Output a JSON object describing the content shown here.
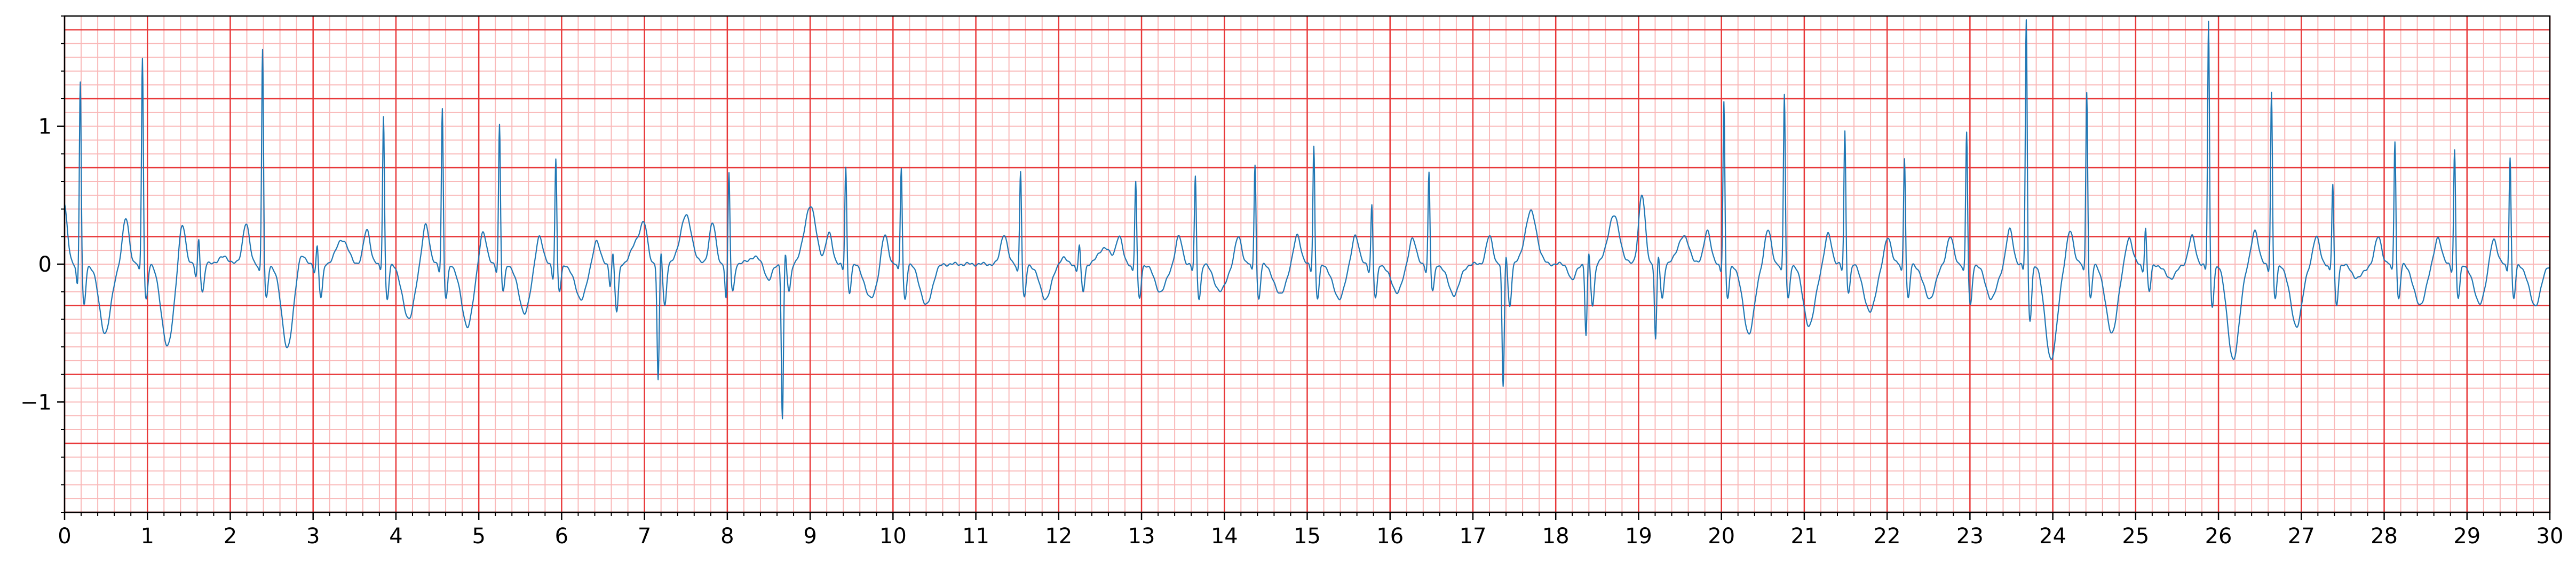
{
  "chart_data": {
    "type": "line",
    "title": "",
    "xlabel": "",
    "ylabel": "",
    "xlim": [
      0,
      30
    ],
    "ylim": [
      -1.8,
      1.8
    ],
    "x_ticks": [
      0,
      1,
      2,
      3,
      4,
      5,
      6,
      7,
      8,
      9,
      10,
      11,
      12,
      13,
      14,
      15,
      16,
      17,
      18,
      19,
      20,
      21,
      22,
      23,
      24,
      25,
      26,
      27,
      28,
      29,
      30
    ],
    "x_tick_labels": [
      "0",
      "1",
      "2",
      "3",
      "4",
      "5",
      "6",
      "7",
      "8",
      "9",
      "10",
      "11",
      "12",
      "13",
      "14",
      "15",
      "16",
      "17",
      "18",
      "19",
      "20",
      "21",
      "22",
      "23",
      "24",
      "25",
      "26",
      "27",
      "28",
      "29",
      "30"
    ],
    "y_ticks": [
      -1,
      0,
      1
    ],
    "y_tick_labels": [
      "−1",
      "0",
      "1"
    ],
    "grid": {
      "major": true,
      "major_x_step": 1,
      "major_y_step": 0.5,
      "major_color": "#e8393a",
      "minor": true,
      "minor_x_step": 0.2,
      "minor_y_step": 0.1,
      "minor_color": "#f9b9b9"
    },
    "line_color": "#1f77b4",
    "beats": [
      {
        "t": 0.19,
        "amp": 1.35,
        "q": 0.15,
        "s": 0.3,
        "tw": -0.5,
        "tt": 0.45
      },
      {
        "t": 0.94,
        "amp": 1.52,
        "q": 0.05,
        "s": 0.25,
        "tw": -0.6,
        "tt": 0.33
      },
      {
        "t": 1.62,
        "amp": 0.2,
        "q": 0.1,
        "s": 0.2,
        "tw": 0.05,
        "tt": 0.3
      },
      {
        "t": 2.39,
        "amp": 1.58,
        "q": 0.05,
        "s": 0.25,
        "tw": -0.6,
        "tt": 0.3
      },
      {
        "t": 3.05,
        "amp": 0.15,
        "q": 0.05,
        "s": 0.25,
        "tw": 0.18,
        "tt": 0.1
      },
      {
        "t": 3.85,
        "amp": 1.1,
        "q": 0.05,
        "s": 0.25,
        "tw": -0.4,
        "tt": 0.25
      },
      {
        "t": 4.56,
        "amp": 1.15,
        "q": 0.05,
        "s": 0.25,
        "tw": -0.45,
        "tt": 0.3
      },
      {
        "t": 5.25,
        "amp": 1.03,
        "q": 0.05,
        "s": 0.2,
        "tw": -0.35,
        "tt": 0.25
      },
      {
        "t": 5.93,
        "amp": 0.78,
        "q": 0.1,
        "s": 0.2,
        "tw": -0.25,
        "tt": 0.22
      },
      {
        "t": 6.62,
        "amp": 0.1,
        "q": 0.15,
        "s": 0.35,
        "tw": 0.18,
        "tt": 0.18
      },
      {
        "t": 7.2,
        "amp": 0.12,
        "q": 0.85,
        "s": 0.3,
        "tw": 0.35,
        "tt": 0.2
      },
      {
        "t": 8.02,
        "amp": 0.68,
        "q": 0.25,
        "s": 0.2,
        "tw": 0.05,
        "tt": 0.3
      },
      {
        "t": 8.7,
        "amp": 0.1,
        "q": 1.12,
        "s": 0.2,
        "tw": 0.42,
        "tt": -0.12
      },
      {
        "t": 9.43,
        "amp": 0.72,
        "q": 0.05,
        "s": 0.2,
        "tw": -0.25,
        "tt": 0.22
      },
      {
        "t": 10.1,
        "amp": 0.72,
        "q": 0.05,
        "s": 0.25,
        "tw": -0.3,
        "tt": 0.22
      },
      {
        "t": 11.54,
        "amp": 0.7,
        "q": 0.05,
        "s": 0.25,
        "tw": -0.25,
        "tt": 0.22
      },
      {
        "t": 12.25,
        "amp": 0.15,
        "q": 0.05,
        "s": 0.2,
        "tw": 0.12,
        "tt": 0.05
      },
      {
        "t": 12.93,
        "amp": 0.62,
        "q": 0.05,
        "s": 0.25,
        "tw": -0.2,
        "tt": 0.2
      },
      {
        "t": 13.65,
        "amp": 0.65,
        "q": 0.05,
        "s": 0.25,
        "tw": -0.2,
        "tt": 0.2
      },
      {
        "t": 14.37,
        "amp": 0.75,
        "q": 0.05,
        "s": 0.25,
        "tw": -0.22,
        "tt": 0.2
      },
      {
        "t": 15.08,
        "amp": 0.88,
        "q": 0.05,
        "s": 0.25,
        "tw": -0.25,
        "tt": 0.22
      },
      {
        "t": 15.78,
        "amp": 0.45,
        "q": 0.05,
        "s": 0.25,
        "tw": -0.2,
        "tt": 0.22
      },
      {
        "t": 16.47,
        "amp": 0.68,
        "q": 0.05,
        "s": 0.2,
        "tw": -0.22,
        "tt": 0.2
      },
      {
        "t": 17.4,
        "amp": 0.1,
        "q": 0.9,
        "s": 0.3,
        "tw": 0.38,
        "tt": 0.2
      },
      {
        "t": 18.4,
        "amp": 0.1,
        "q": 0.52,
        "s": 0.3,
        "tw": 0.35,
        "tt": -0.12
      },
      {
        "t": 19.24,
        "amp": 0.08,
        "q": 0.55,
        "s": 0.25,
        "tw": 0.2,
        "tt": 0.5
      },
      {
        "t": 20.03,
        "amp": 1.2,
        "q": 0.05,
        "s": 0.25,
        "tw": -0.5,
        "tt": 0.25
      },
      {
        "t": 20.76,
        "amp": 1.25,
        "q": 0.05,
        "s": 0.25,
        "tw": -0.45,
        "tt": 0.25
      },
      {
        "t": 21.49,
        "amp": 0.98,
        "q": 0.05,
        "s": 0.2,
        "tw": -0.35,
        "tt": 0.22
      },
      {
        "t": 22.21,
        "amp": 0.8,
        "q": 0.05,
        "s": 0.25,
        "tw": -0.25,
        "tt": 0.2
      },
      {
        "t": 22.96,
        "amp": 0.98,
        "q": 0.05,
        "s": 0.3,
        "tw": -0.25,
        "tt": 0.2
      },
      {
        "t": 23.68,
        "amp": 1.8,
        "q": 0.05,
        "s": 0.4,
        "tw": -0.7,
        "tt": 0.25
      },
      {
        "t": 24.41,
        "amp": 1.28,
        "q": 0.05,
        "s": 0.25,
        "tw": -0.5,
        "tt": 0.25
      },
      {
        "t": 25.12,
        "amp": 0.28,
        "q": 0.05,
        "s": 0.2,
        "tw": -0.1,
        "tt": 0.2
      },
      {
        "t": 25.88,
        "amp": 1.78,
        "q": 0.05,
        "s": 0.3,
        "tw": -0.7,
        "tt": 0.2
      },
      {
        "t": 26.64,
        "amp": 1.27,
        "q": 0.05,
        "s": 0.25,
        "tw": -0.45,
        "tt": 0.25
      },
      {
        "t": 27.38,
        "amp": 0.6,
        "q": 0.05,
        "s": 0.3,
        "tw": -0.1,
        "tt": 0.2
      },
      {
        "t": 28.13,
        "amp": 0.92,
        "q": 0.05,
        "s": 0.25,
        "tw": -0.3,
        "tt": 0.2
      },
      {
        "t": 28.85,
        "amp": 0.85,
        "q": 0.05,
        "s": 0.25,
        "tw": -0.28,
        "tt": 0.2
      },
      {
        "t": 29.52,
        "amp": 0.8,
        "q": 0.05,
        "s": 0.25,
        "tw": -0.3,
        "tt": 0.2
      }
    ]
  }
}
